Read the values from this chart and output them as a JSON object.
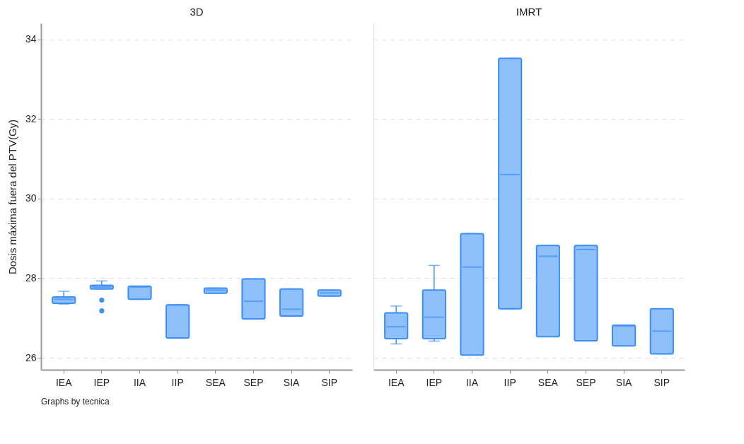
{
  "chart_data": [
    {
      "type": "box",
      "title": "3D",
      "ylabel": "Dosis máxima fuera del PTV(Gy)",
      "categories": [
        "IEA",
        "IEP",
        "IIA",
        "IIP",
        "SEA",
        "SEP",
        "SIA",
        "SIP"
      ],
      "color": "#8ec0fb",
      "ylim": [
        25.7,
        34.4
      ],
      "yticks": [
        26,
        28,
        30,
        32,
        34
      ],
      "grid": "y",
      "annotations": [
        "Graphs by tecnica"
      ],
      "boxes": [
        {
          "low": 27.35,
          "q1": 27.37,
          "median": 27.47,
          "q3": 27.53,
          "high": 27.67
        },
        {
          "low": 27.73,
          "q1": 27.73,
          "median": 27.78,
          "q3": 27.82,
          "high": 27.93,
          "outliers": [
            27.45,
            27.18
          ]
        },
        {
          "low": 27.47,
          "q1": 27.47,
          "median": 27.78,
          "q3": 27.8,
          "high": 27.8
        },
        {
          "low": 26.5,
          "q1": 26.5,
          "median": 27.33,
          "q3": 27.33,
          "high": 27.33
        },
        {
          "low": 27.62,
          "q1": 27.62,
          "median": 27.7,
          "q3": 27.75,
          "high": 27.75
        },
        {
          "low": 26.98,
          "q1": 26.98,
          "median": 27.42,
          "q3": 27.98,
          "high": 27.98
        },
        {
          "low": 27.05,
          "q1": 27.05,
          "median": 27.22,
          "q3": 27.73,
          "high": 27.73
        },
        {
          "low": 27.55,
          "q1": 27.55,
          "median": 27.63,
          "q3": 27.7,
          "high": 27.7
        }
      ]
    },
    {
      "type": "box",
      "title": "IMRT",
      "categories": [
        "IEA",
        "IEP",
        "IIA",
        "IIP",
        "SEA",
        "SEP",
        "SIA",
        "SIP"
      ],
      "color": "#8ec0fb",
      "ylim": [
        25.7,
        34.4
      ],
      "yticks": [
        26,
        28,
        30,
        32,
        34
      ],
      "grid": "y",
      "tick_labels": "x",
      "boxes": [
        {
          "low": 26.35,
          "q1": 26.48,
          "median": 26.78,
          "q3": 27.13,
          "high": 27.3
        },
        {
          "low": 26.42,
          "q1": 26.48,
          "median": 27.02,
          "q3": 27.7,
          "high": 28.32
        },
        {
          "low": 26.07,
          "q1": 26.07,
          "median": 28.28,
          "q3": 29.12,
          "high": 29.12
        },
        {
          "low": 27.23,
          "q1": 27.23,
          "median": 30.6,
          "q3": 33.52,
          "high": 33.52
        },
        {
          "low": 26.53,
          "q1": 26.53,
          "median": 28.55,
          "q3": 28.82,
          "high": 28.82
        },
        {
          "low": 26.43,
          "q1": 26.43,
          "median": 28.72,
          "q3": 28.82,
          "high": 28.82
        },
        {
          "low": 26.3,
          "q1": 26.3,
          "median": 26.8,
          "q3": 26.82,
          "high": 26.82
        },
        {
          "low": 26.1,
          "q1": 26.1,
          "median": 26.67,
          "q3": 27.23,
          "high": 27.23
        }
      ]
    }
  ]
}
